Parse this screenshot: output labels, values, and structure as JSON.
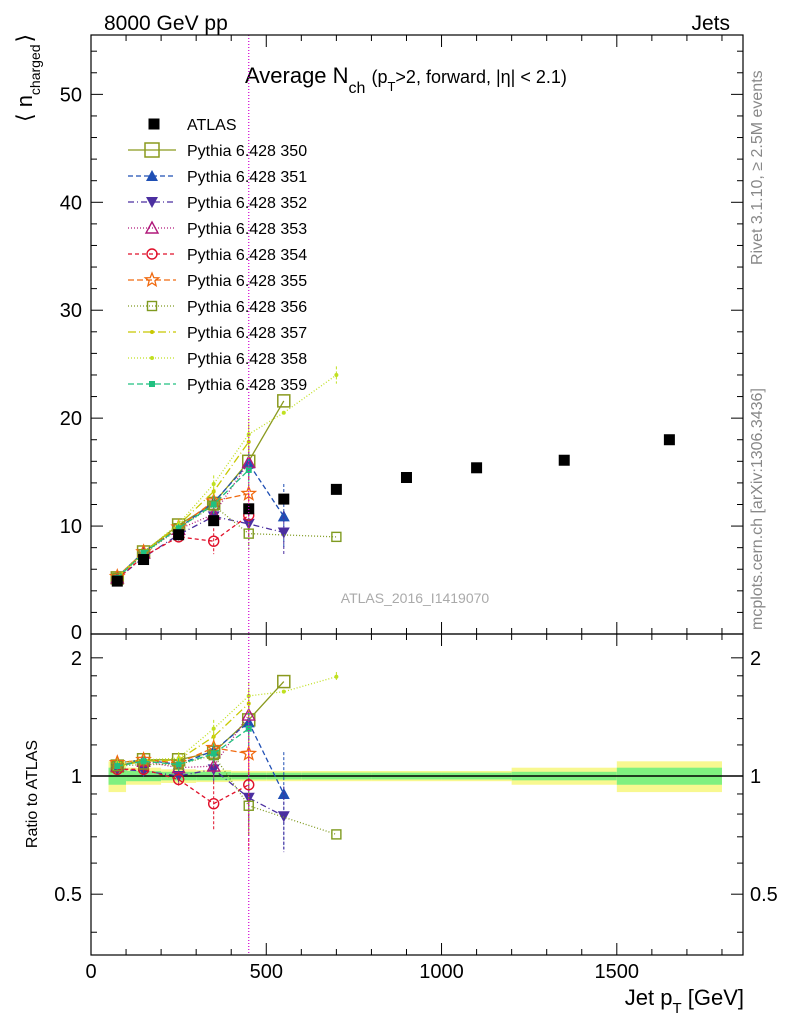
{
  "header": {
    "left": "8000 GeV pp",
    "right": "Jets"
  },
  "side_labels": {
    "rivet": "Rivet 3.1.10, ≥ 2.5M events",
    "mcplots": "mcplots.cern.ch [arXiv:1306.3436]"
  },
  "watermark": "ATLAS_2016_I1419070",
  "colors": {
    "ATLAS": "#000000",
    "350": "#8a9a1e",
    "351": "#1f4fb4",
    "352": "#4b2fa0",
    "353": "#b0187a",
    "354": "#e0102a",
    "355": "#f06a10",
    "356": "#7f9a20",
    "357": "#c8c800",
    "358": "#c0e020",
    "359": "#20c080",
    "band_inner": "#80f080",
    "band_outer": "#f8f890",
    "vline": "#d000d0"
  },
  "chart_data": [
    {
      "type": "scatter",
      "title_main": "Average N",
      "title_sub": "ch",
      "title_rest_1": "(p",
      "title_rest_sub": "T",
      "title_rest_2": ">2, forward, |η| < 2.1)",
      "ylabel_main": "⟨ n",
      "ylabel_sub": "charged",
      "ylabel_close": "⟩",
      "xlim": [
        0,
        1860
      ],
      "ylim": [
        0,
        55.5
      ],
      "yticks": [
        10,
        20,
        30,
        40,
        50
      ],
      "ytick_labels": [
        "10",
        "20",
        "30",
        "40",
        "50"
      ],
      "bottom_tick_label": "0",
      "vline_x": 450,
      "legend_position": "top-left",
      "series": [
        {
          "name": "ATLAS",
          "key": "ATLAS",
          "style": "data",
          "x": [
            75,
            150,
            250,
            350,
            450,
            550,
            700,
            900,
            1100,
            1350,
            1650
          ],
          "y": [
            4.9,
            6.9,
            9.2,
            10.5,
            11.6,
            12.5,
            13.4,
            14.5,
            15.4,
            16.1,
            18.0
          ],
          "err": [
            0.2,
            0.2,
            0.2,
            0.3,
            0.3,
            0.4,
            0.3,
            0.3,
            0.3,
            0.3,
            0.4
          ]
        },
        {
          "name": "Pythia 6.428 350",
          "key": "350",
          "marker": "square-open",
          "dash": "",
          "x": [
            75,
            150,
            250,
            350,
            450,
            550
          ],
          "y": [
            5.2,
            7.6,
            10.1,
            12.1,
            16.0,
            21.6
          ],
          "err": [
            0.1,
            0.2,
            0.4,
            0.8,
            1.5,
            0
          ]
        },
        {
          "name": "Pythia 6.428 351",
          "key": "351",
          "marker": "triangle-up",
          "dash": "5,3",
          "x": [
            75,
            150,
            250,
            350,
            450,
            550
          ],
          "y": [
            5.3,
            7.6,
            9.8,
            12.2,
            15.8,
            10.9
          ],
          "err": [
            0.1,
            0.2,
            0.4,
            0.8,
            1.5,
            3.0
          ]
        },
        {
          "name": "Pythia 6.428 352",
          "key": "352",
          "marker": "triangle-down",
          "dash": "6,3,1,3",
          "x": [
            75,
            150,
            250,
            350,
            450,
            550
          ],
          "y": [
            5.1,
            7.1,
            9.2,
            10.9,
            10.2,
            9.4
          ],
          "err": [
            0.1,
            0.2,
            0.4,
            0.8,
            1.5,
            2.0
          ]
        },
        {
          "name": "Pythia 6.428 353",
          "key": "353",
          "marker": "triangle-open",
          "dash": "1,2",
          "x": [
            75,
            150,
            250,
            350,
            450
          ],
          "y": [
            5.2,
            7.5,
            9.7,
            11.1,
            15.9
          ],
          "err": [
            0.1,
            0.2,
            0.4,
            0.8,
            1.5
          ]
        },
        {
          "name": "Pythia 6.428 354",
          "key": "354",
          "marker": "circle-open",
          "dash": "4,3",
          "x": [
            75,
            150,
            250,
            350,
            450
          ],
          "y": [
            5.1,
            7.2,
            9.0,
            8.6,
            11.0
          ],
          "err": [
            0.1,
            0.2,
            0.4,
            1.2,
            2.0
          ]
        },
        {
          "name": "Pythia 6.428 355",
          "key": "355",
          "marker": "star-open",
          "dash": "6,3",
          "x": [
            75,
            150,
            250,
            350,
            450
          ],
          "y": [
            5.3,
            7.6,
            9.9,
            12.3,
            13.0
          ],
          "err": [
            0.1,
            0.2,
            0.4,
            0.8,
            1.5
          ]
        },
        {
          "name": "Pythia 6.428 356",
          "key": "356",
          "marker": "square-open-small",
          "dash": "1,2",
          "x": [
            75,
            150,
            250,
            350,
            450,
            700
          ],
          "y": [
            5.2,
            7.4,
            9.8,
            11.9,
            9.3,
            9.0
          ],
          "err": [
            0.1,
            0.2,
            0.4,
            0.8,
            1.5,
            0
          ]
        },
        {
          "name": "Pythia 6.428 357",
          "key": "357",
          "marker": "dot",
          "dash": "8,3,1,3",
          "x": [
            75,
            150,
            250,
            350,
            450
          ],
          "y": [
            5.2,
            7.5,
            10.1,
            13.2,
            17.8
          ],
          "err": [
            0.1,
            0.2,
            0.4,
            0.8,
            1.5
          ]
        },
        {
          "name": "Pythia 6.428 358",
          "key": "358",
          "marker": "dot",
          "dash": "1,2",
          "x": [
            75,
            150,
            250,
            350,
            450,
            550,
            700
          ],
          "y": [
            5.3,
            7.6,
            10.2,
            13.9,
            18.5,
            20.5,
            24.0
          ],
          "err": [
            0.1,
            0.2,
            0.4,
            0.8,
            1.5,
            0,
            0.8
          ]
        },
        {
          "name": "Pythia 6.428 359",
          "key": "359",
          "marker": "square-filled-small",
          "dash": "6,3",
          "x": [
            75,
            150,
            250,
            350,
            450
          ],
          "y": [
            5.2,
            7.5,
            9.8,
            12.0,
            15.2
          ],
          "err": [
            0.1,
            0.2,
            0.4,
            0.8,
            1.5
          ]
        }
      ]
    },
    {
      "type": "scatter",
      "ylabel": "Ratio to ATLAS",
      "xlabel_main": "Jet p",
      "xlabel_sub": "T",
      "xlabel_rest": " [GeV]",
      "xlim": [
        0,
        1860
      ],
      "ylim": [
        0.35,
        2.3
      ],
      "ylog": true,
      "yticks": [
        0.5,
        1,
        2
      ],
      "ytick_labels": [
        "0.5",
        "1",
        "2"
      ],
      "xticks": [
        0,
        500,
        1000,
        1500
      ],
      "xtick_labels": [
        "0",
        "500",
        "1000",
        "1500"
      ],
      "vline_x": 450,
      "band_bins": [
        [
          50,
          100
        ],
        [
          100,
          200
        ],
        [
          200,
          300
        ],
        [
          300,
          400
        ],
        [
          400,
          500
        ],
        [
          500,
          600
        ],
        [
          600,
          800
        ],
        [
          800,
          1000
        ],
        [
          1000,
          1200
        ],
        [
          1200,
          1500
        ],
        [
          1500,
          1800
        ]
      ],
      "band_inner": [
        0.05,
        0.03,
        0.025,
        0.025,
        0.02,
        0.02,
        0.02,
        0.02,
        0.02,
        0.025,
        0.05
      ],
      "band_outer": [
        0.09,
        0.05,
        0.04,
        0.035,
        0.03,
        0.03,
        0.03,
        0.03,
        0.03,
        0.05,
        0.09
      ],
      "series": [
        {
          "key": "350",
          "marker": "square-open",
          "dash": "",
          "x": [
            75,
            150,
            250,
            350,
            450,
            550
          ],
          "y": [
            1.06,
            1.1,
            1.1,
            1.15,
            1.39,
            1.74
          ],
          "err": [
            0.03,
            0.03,
            0.04,
            0.07,
            0.13,
            0
          ]
        },
        {
          "key": "351",
          "marker": "triangle-up",
          "dash": "5,3",
          "x": [
            75,
            150,
            250,
            350,
            450,
            550
          ],
          "y": [
            1.08,
            1.1,
            1.07,
            1.16,
            1.37,
            0.9
          ],
          "err": [
            0.03,
            0.03,
            0.04,
            0.07,
            0.13,
            0.25
          ]
        },
        {
          "key": "352",
          "marker": "triangle-down",
          "dash": "6,3,1,3",
          "x": [
            75,
            150,
            250,
            350,
            450,
            550
          ],
          "y": [
            1.04,
            1.03,
            1.0,
            1.04,
            0.88,
            0.79
          ],
          "err": [
            0.03,
            0.03,
            0.04,
            0.07,
            0.13,
            0.15
          ]
        },
        {
          "key": "353",
          "marker": "triangle-open",
          "dash": "1,2",
          "x": [
            75,
            150,
            250,
            350,
            450
          ],
          "y": [
            1.06,
            1.09,
            1.05,
            1.06,
            1.43
          ],
          "err": [
            0.03,
            0.03,
            0.04,
            0.07,
            0.13
          ]
        },
        {
          "key": "354",
          "marker": "circle-open",
          "dash": "4,3",
          "x": [
            75,
            150,
            250,
            350,
            450
          ],
          "y": [
            1.04,
            1.04,
            0.98,
            0.85,
            0.95
          ],
          "err": [
            0.03,
            0.03,
            0.04,
            0.12,
            0.3
          ]
        },
        {
          "key": "355",
          "marker": "star-open",
          "dash": "6,3",
          "x": [
            75,
            150,
            250,
            350,
            450
          ],
          "y": [
            1.08,
            1.1,
            1.08,
            1.18,
            1.14
          ],
          "err": [
            0.03,
            0.03,
            0.04,
            0.07,
            0.13
          ]
        },
        {
          "key": "356",
          "marker": "square-open-small",
          "dash": "1,2",
          "x": [
            75,
            150,
            250,
            350,
            450,
            700
          ],
          "y": [
            1.06,
            1.07,
            1.07,
            1.13,
            0.84,
            0.71
          ],
          "err": [
            0.03,
            0.03,
            0.04,
            0.07,
            0.13,
            0
          ]
        },
        {
          "key": "357",
          "marker": "dot",
          "dash": "8,3,1,3",
          "x": [
            75,
            150,
            250,
            350,
            450
          ],
          "y": [
            1.06,
            1.09,
            1.1,
            1.26,
            1.53
          ],
          "err": [
            0.03,
            0.03,
            0.04,
            0.07,
            0.13
          ]
        },
        {
          "key": "358",
          "marker": "dot",
          "dash": "1,2",
          "x": [
            75,
            150,
            250,
            350,
            450,
            550,
            700
          ],
          "y": [
            1.08,
            1.1,
            1.11,
            1.32,
            1.6,
            1.64,
            1.79
          ],
          "err": [
            0.03,
            0.03,
            0.04,
            0.07,
            0.13,
            0,
            0.05
          ]
        },
        {
          "key": "359",
          "marker": "square-filled-small",
          "dash": "6,3",
          "x": [
            75,
            150,
            250,
            350,
            450
          ],
          "y": [
            1.06,
            1.09,
            1.07,
            1.14,
            1.32
          ],
          "err": [
            0.03,
            0.03,
            0.04,
            0.07,
            0.13
          ]
        }
      ]
    }
  ]
}
